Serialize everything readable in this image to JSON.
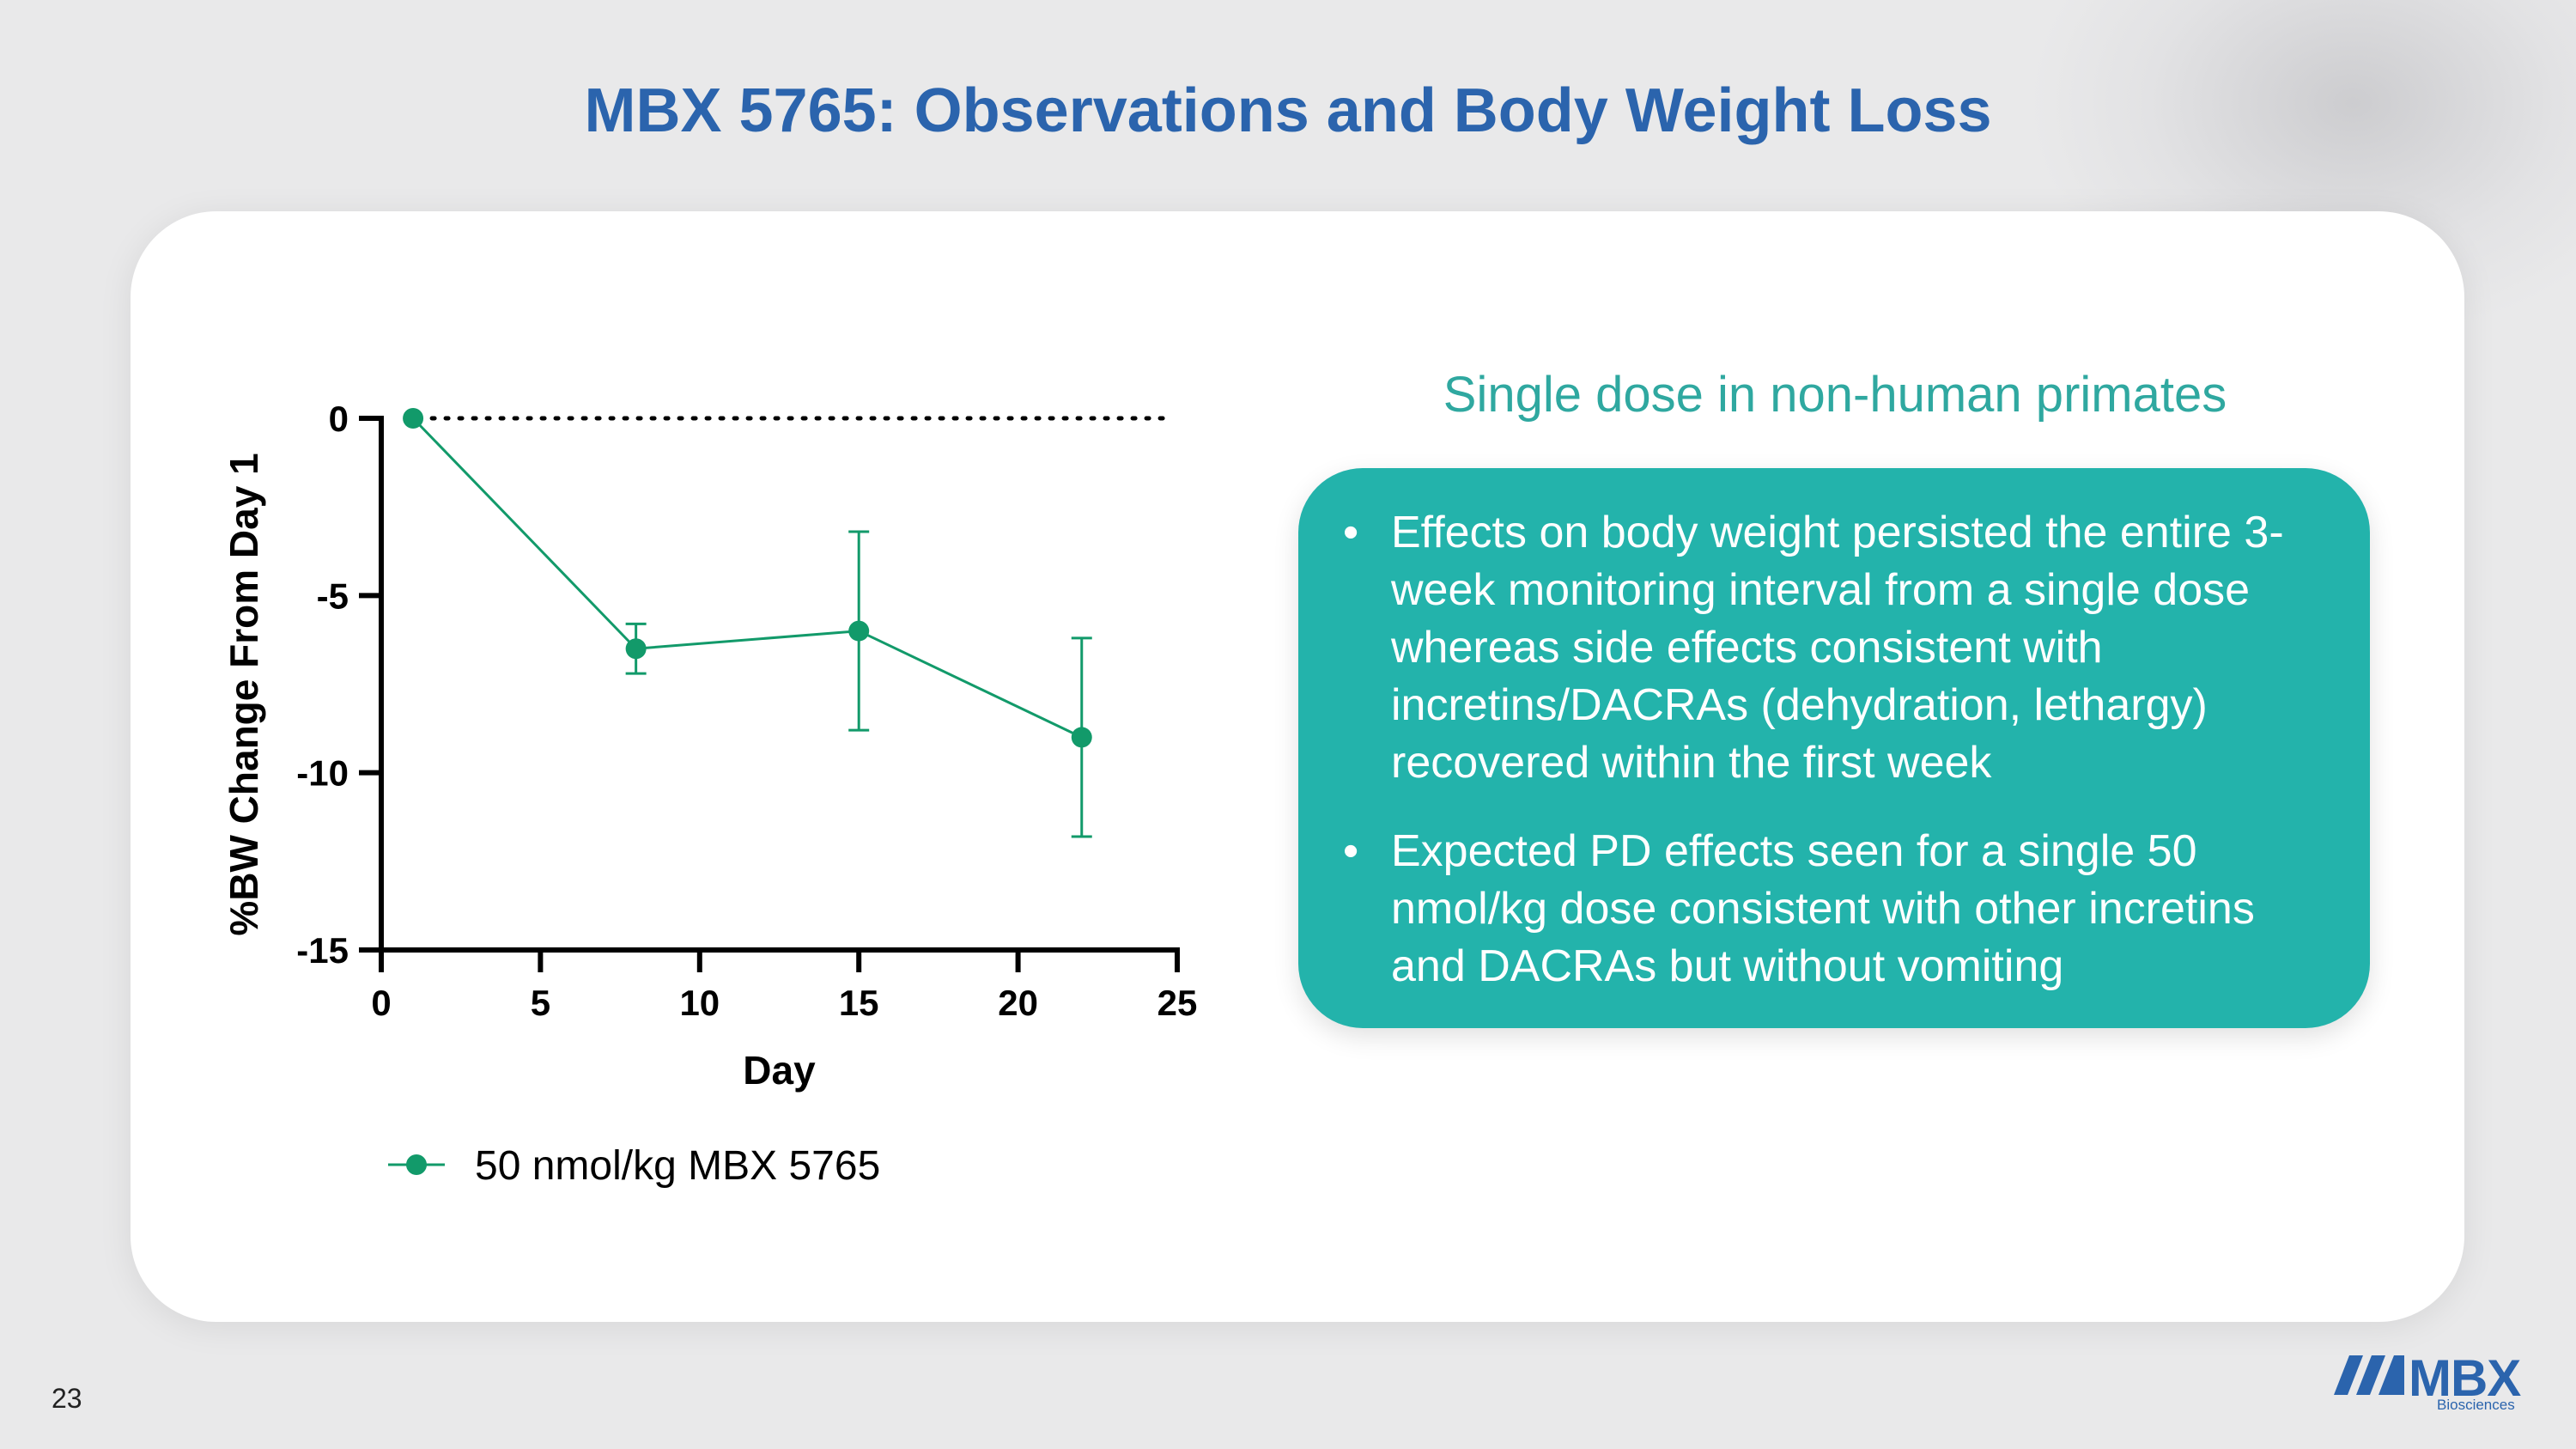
{
  "slide": {
    "title": "MBX 5765: Observations and Body Weight Loss",
    "subtitle": "Single dose in non-human primates",
    "bullets": [
      "Effects on body weight persisted the entire 3-week monitoring interval from a single dose whereas side effects consistent with incretins/DACRAs (dehydration, lethargy) recovered within the first week",
      "Expected PD effects seen for a single 50 nmol/kg dose consistent with other incretins and DACRAs but without vomiting"
    ],
    "bullet_symbol": "•",
    "page_number": "23",
    "logo": {
      "name": "MBX",
      "tagline": "Biosciences"
    }
  },
  "colors": {
    "title": "#2b64ad",
    "accent_teal": "#23b3ab",
    "subtitle_teal": "#2fa8a0",
    "series": "#129a6a",
    "background": "#e9e9ea",
    "card": "#ffffff"
  },
  "chart_data": {
    "type": "line",
    "xlabel": "Day",
    "ylabel": "%BW Change From  Day 1",
    "xlim": [
      0,
      25
    ],
    "ylim": [
      -15,
      0
    ],
    "xticks": [
      0,
      5,
      10,
      15,
      20,
      25
    ],
    "yticks": [
      0,
      -5,
      -10,
      -15
    ],
    "reference_line": {
      "y": 0,
      "style": "dotted",
      "x_range": [
        1,
        25
      ]
    },
    "legend_position": "bottom-left",
    "series": [
      {
        "name": "50 nmol/kg MBX 5765",
        "x": [
          1,
          8,
          15,
          22
        ],
        "y": [
          0,
          -6.5,
          -6.0,
          -9.0
        ],
        "error": [
          0,
          0.7,
          2.8,
          2.8
        ]
      }
    ]
  }
}
